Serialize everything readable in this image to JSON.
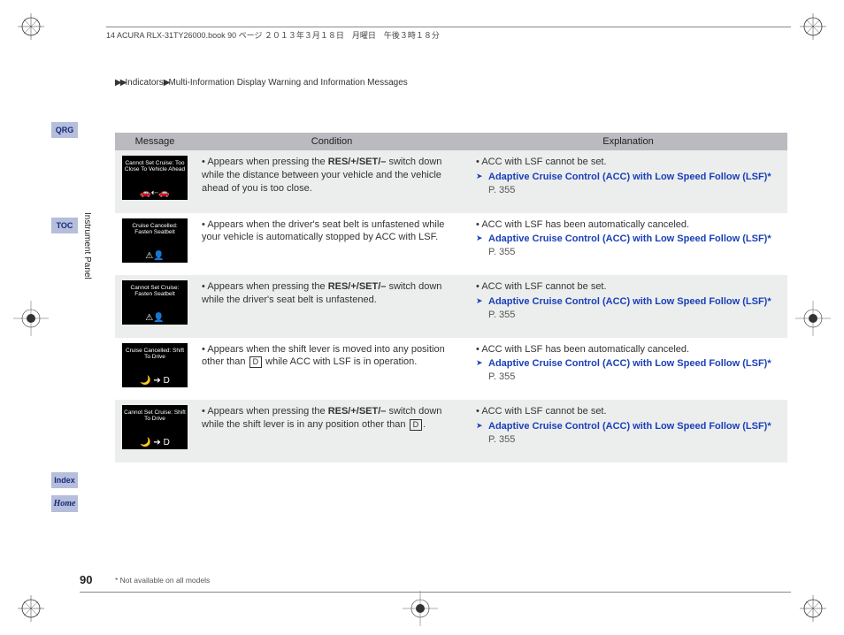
{
  "header": {
    "doc_info": "14 ACURA RLX-31TY26000.book  90 ページ  ２０１３年３月１８日　月曜日　午後３時１８分"
  },
  "breadcrumb": {
    "arrows": "▶▶",
    "path1": "Indicators",
    "sep": "▶",
    "path2": "Multi-Information Display Warning and Information Messages"
  },
  "tabs": {
    "qrg": "QRG",
    "toc": "TOC",
    "index": "Index",
    "home": "Home"
  },
  "section_label": "Instrument Panel",
  "table": {
    "headers": {
      "message": "Message",
      "condition": "Condition",
      "explanation": "Explanation"
    },
    "rows": [
      {
        "msg_title": "Cannot Set Cruise:\nToo Close To\nVehicle Ahead",
        "msg_icon": "🚗⇠🚗",
        "cond_pre": "Appears when pressing the ",
        "cond_bold": "RES/+/SET/–",
        "cond_post": " switch down while the distance between your vehicle and the vehicle ahead of you is too close.",
        "expl_main": "ACC with LSF cannot be set.",
        "expl_link": "Adaptive Cruise Control (ACC) with Low Speed Follow (LSF)*",
        "expl_page": " P. 355"
      },
      {
        "msg_title": "Cruise Cancelled:\nFasten Seatbelt",
        "msg_icon": "⚠👤",
        "cond_pre": "Appears when the driver's seat belt is unfastened while your vehicle is automatically stopped by ACC with LSF.",
        "cond_bold": "",
        "cond_post": "",
        "expl_main": "ACC with LSF has been automatically canceled.",
        "expl_link": "Adaptive Cruise Control (ACC) with Low Speed Follow (LSF)*",
        "expl_page": " P. 355"
      },
      {
        "msg_title": "Cannot Set Cruise:\nFasten Seatbelt",
        "msg_icon": "⚠👤",
        "cond_pre": "Appears when pressing the ",
        "cond_bold": "RES/+/SET/–",
        "cond_post": " switch down while the driver's seat belt is unfastened.",
        "expl_main": "ACC with LSF cannot be set.",
        "expl_link": "Adaptive Cruise Control (ACC) with Low Speed Follow (LSF)*",
        "expl_page": " P. 355"
      },
      {
        "msg_title": "Cruise Cancelled:\nShift To Drive",
        "msg_icon": "🌙 ➔ D",
        "cond_pre": "Appears when the shift lever is moved into any position other than ",
        "cond_box": "D",
        "cond_post": " while ACC with LSF is in operation.",
        "expl_main": "ACC with LSF has been automatically canceled.",
        "expl_link": "Adaptive Cruise Control (ACC) with Low Speed Follow (LSF)*",
        "expl_page": " P. 355"
      },
      {
        "msg_title": "Cannot Set Cruise:\nShift To Drive",
        "msg_icon": "🌙 ➔ D",
        "cond_pre": "Appears when pressing the ",
        "cond_bold": "RES/+/SET/–",
        "cond_post_pre": " switch down while the shift lever is in any position other than ",
        "cond_box": "D",
        "cond_post": ".",
        "expl_main": "ACC with LSF cannot be set.",
        "expl_link": "Adaptive Cruise Control (ACC) with Low Speed Follow (LSF)*",
        "expl_page": " P. 355"
      }
    ]
  },
  "page_number": "90",
  "footnote": "* Not available on all models",
  "colors": {
    "tab_bg": "#b5bedb",
    "tab_text": "#1a2a7a",
    "header_bg": "#babac0",
    "row_alt_bg": "#eceded",
    "link_color": "#1a3fb8",
    "msg_bg": "#000000"
  }
}
